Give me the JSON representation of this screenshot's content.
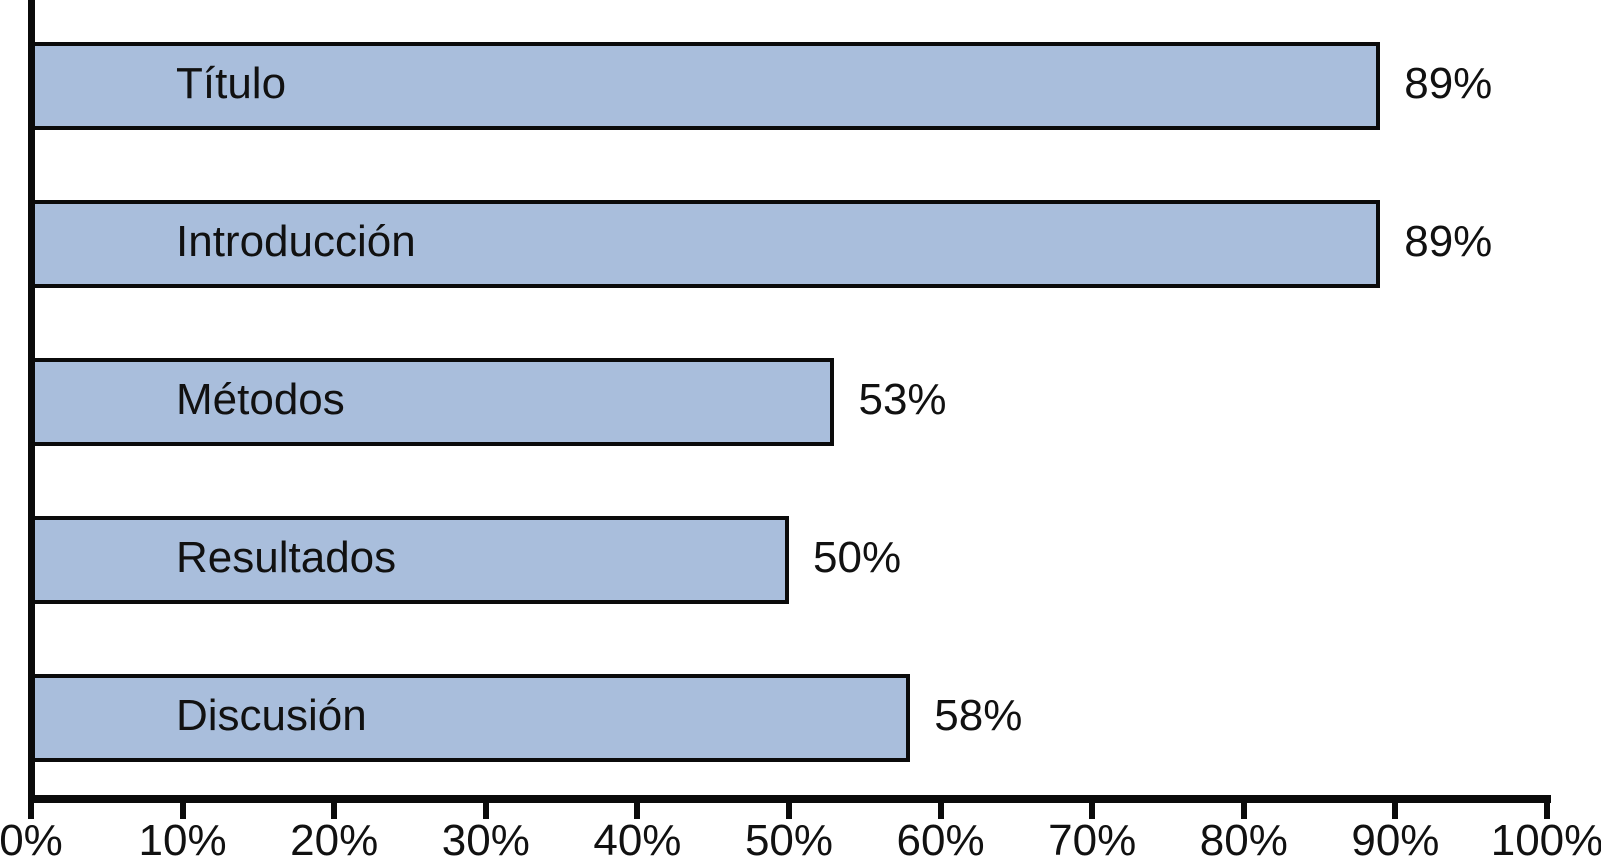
{
  "chart_data": {
    "type": "bar",
    "orientation": "horizontal",
    "title": "",
    "xlabel": "",
    "ylabel": "",
    "categories": [
      "Título",
      "Introducción",
      "Métodos",
      "Resultados",
      "Discusión"
    ],
    "values": [
      89,
      89,
      53,
      50,
      58
    ],
    "value_labels": [
      "89%",
      "89%",
      "53%",
      "50%",
      "58%"
    ],
    "xlim": [
      0,
      100
    ],
    "x_tick_values": [
      0,
      10,
      20,
      30,
      40,
      50,
      60,
      70,
      80,
      90,
      100
    ],
    "x_tick_labels": [
      "0%",
      "10%",
      "20%",
      "30%",
      "40%",
      "50%",
      "60%",
      "70%",
      "80%",
      "90%",
      "100%"
    ],
    "grid": false,
    "legend": null,
    "bar_fill_color": "#a9bedc",
    "bar_border_color": "#0b0b0b",
    "axis_color": "#0b0b0b",
    "text_color": "#111111"
  }
}
